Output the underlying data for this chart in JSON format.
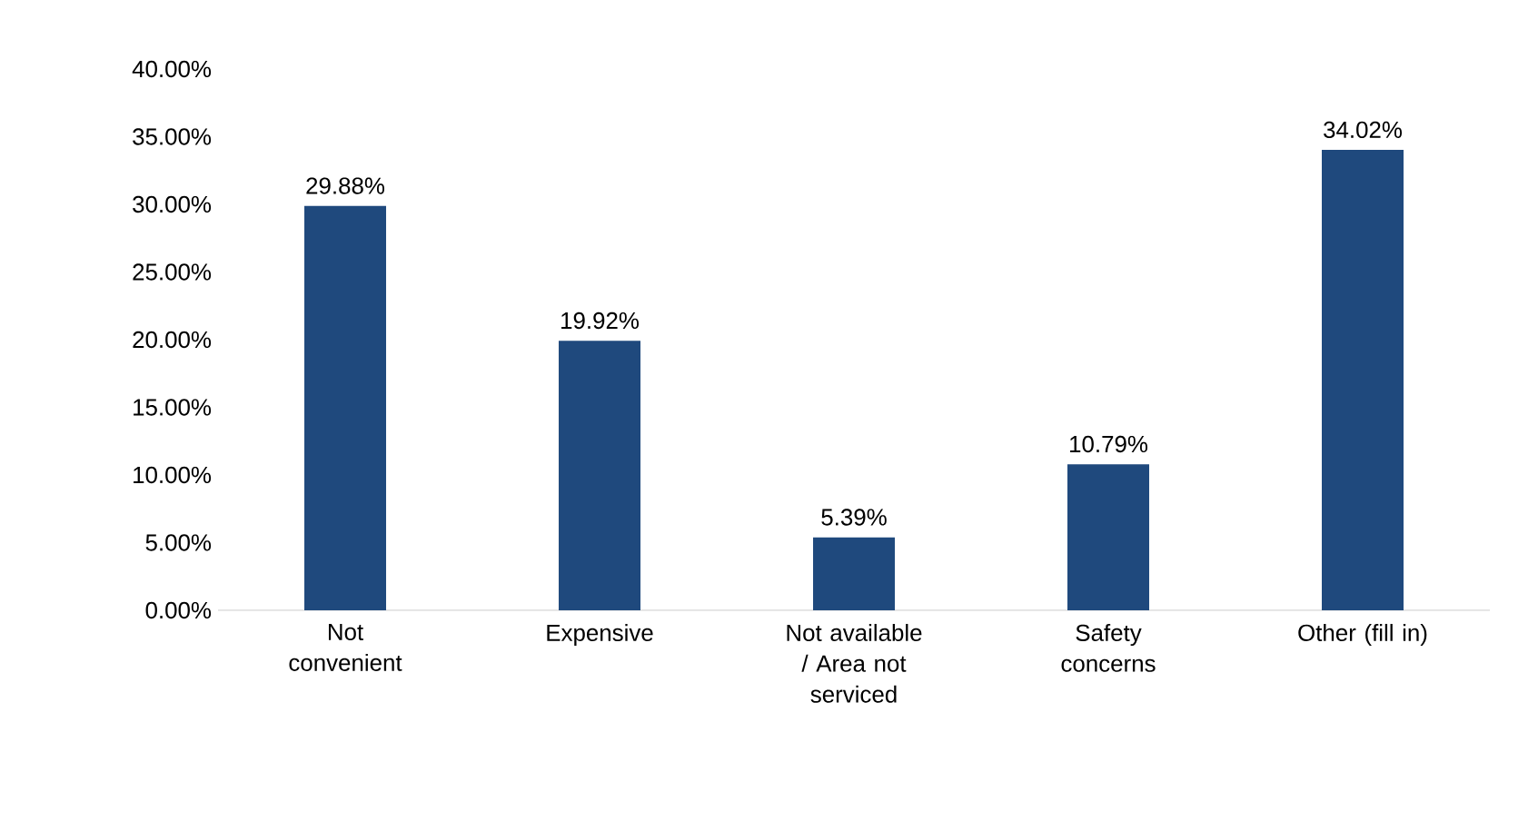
{
  "chart_data": {
    "type": "bar",
    "categories": [
      "Not convenient",
      "Expensive",
      "Not available / Area not serviced",
      "Safety concerns",
      "Other (fill in)"
    ],
    "values": [
      29.88,
      19.92,
      5.39,
      10.79,
      34.02
    ],
    "value_labels": [
      "29.88%",
      "19.92%",
      "5.39%",
      "10.79%",
      "34.02%"
    ],
    "color": "#1f497d",
    "ylim": [
      0,
      40
    ],
    "yticks": [
      {
        "value": 0,
        "label": "0.00%"
      },
      {
        "value": 5,
        "label": "5.00%"
      },
      {
        "value": 10,
        "label": "10.00%"
      },
      {
        "value": 15,
        "label": "15.00%"
      },
      {
        "value": 20,
        "label": "20.00%"
      },
      {
        "value": 25,
        "label": "25.00%"
      },
      {
        "value": 30,
        "label": "30.00%"
      },
      {
        "value": 35,
        "label": "35.00%"
      },
      {
        "value": 40,
        "label": "40.00%"
      }
    ],
    "grid": false
  }
}
